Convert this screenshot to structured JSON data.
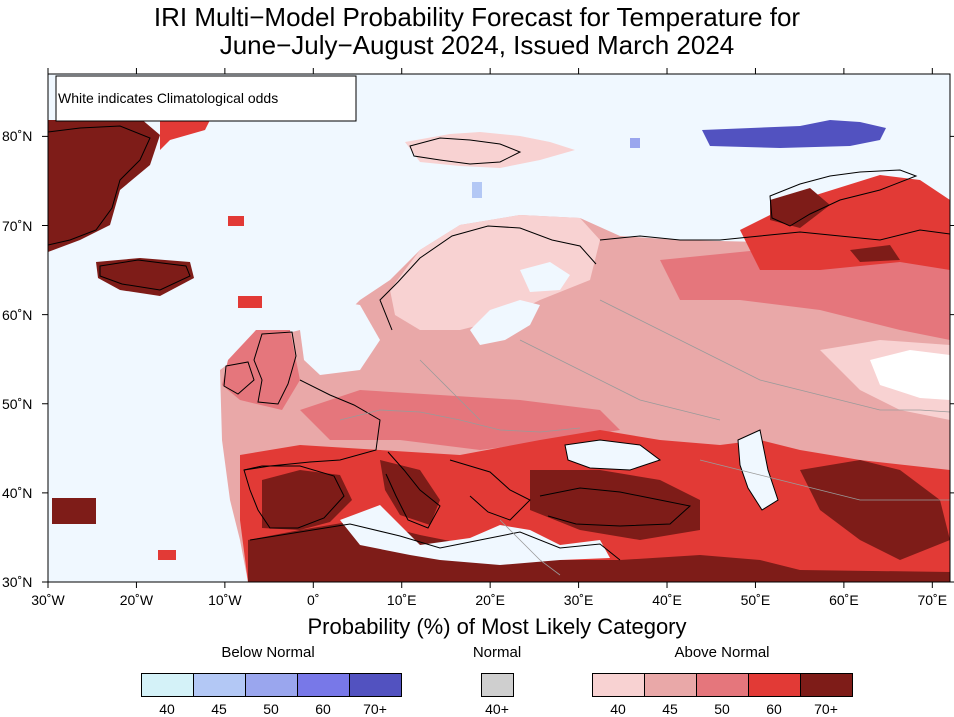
{
  "title": {
    "line1": "IRI Multi−Model Probability Forecast for Temperature for",
    "line2": "June−July−August 2024, Issued March 2024"
  },
  "map": {
    "note": "White indicates Climatological odds",
    "lon_range": [
      -30,
      72
    ],
    "lat_range": [
      30,
      87
    ],
    "x_ticks": [
      "30˚W",
      "20˚W",
      "10˚W",
      "0˚",
      "10˚E",
      "20˚E",
      "30˚E",
      "40˚E",
      "50˚E",
      "60˚E",
      "70˚E"
    ],
    "y_ticks": [
      "80˚N",
      "70˚N",
      "60˚N",
      "50˚N",
      "40˚N",
      "30˚N"
    ],
    "ocean_color": "#f0f8ff"
  },
  "legend": {
    "title": "Probability (%) of Most Likely Category",
    "below": {
      "label": "Below Normal",
      "bins": [
        "40",
        "45",
        "50",
        "60",
        "70+"
      ],
      "colors": [
        "#d4f2f8",
        "#b3c8f5",
        "#9aa6ee",
        "#7878e8",
        "#5252c0"
      ]
    },
    "normal": {
      "label": "Normal",
      "bins": [
        "40+"
      ],
      "colors": [
        "#cfcfcf"
      ]
    },
    "above": {
      "label": "Above Normal",
      "bins": [
        "40",
        "45",
        "50",
        "60",
        "70+"
      ],
      "colors": [
        "#f8d2d2",
        "#e9a8a8",
        "#e5767c",
        "#e23a36",
        "#7e1c18"
      ]
    }
  }
}
